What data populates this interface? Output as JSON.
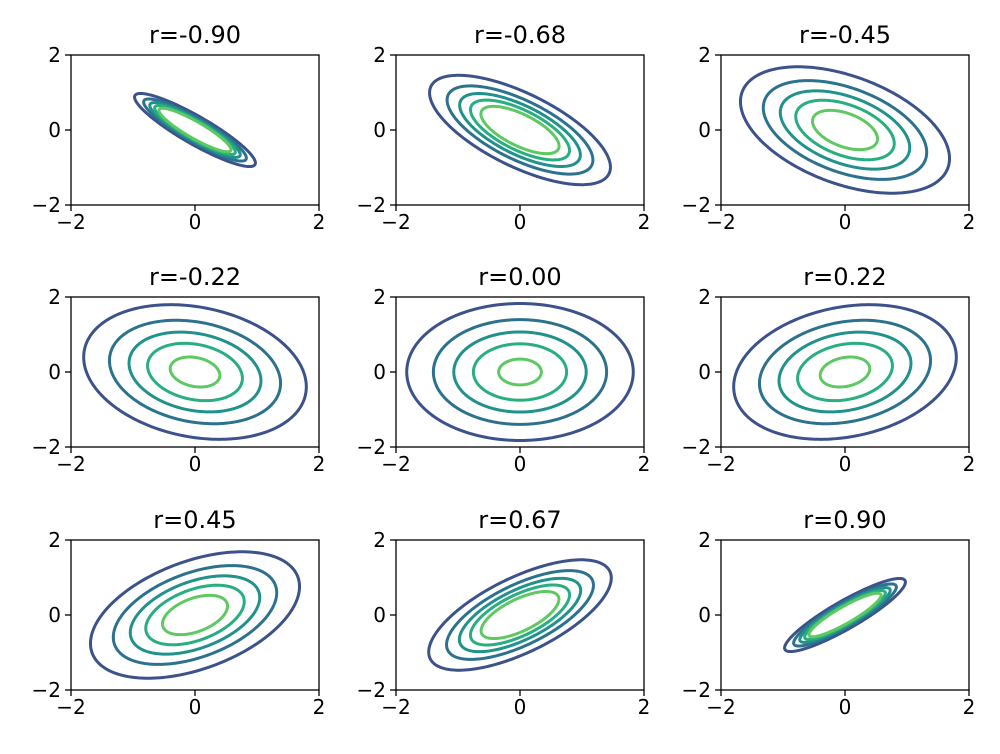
{
  "chart_data": [
    {
      "type": "contour",
      "title": "r=-0.90",
      "r": -0.9,
      "xlim": [
        -2,
        2
      ],
      "ylim": [
        -2,
        2
      ],
      "xticks": [
        -2,
        0,
        2
      ],
      "yticks": [
        -2,
        0,
        2
      ],
      "xtick_labels": [
        "−2",
        "0",
        "2"
      ],
      "ytick_labels": [
        "−2",
        "0",
        "2"
      ]
    },
    {
      "type": "contour",
      "title": "r=-0.68",
      "r": -0.68,
      "xlim": [
        -2,
        2
      ],
      "ylim": [
        -2,
        2
      ],
      "xticks": [
        -2,
        0,
        2
      ],
      "yticks": [
        -2,
        0,
        2
      ],
      "xtick_labels": [
        "−2",
        "0",
        "2"
      ],
      "ytick_labels": [
        "−2",
        "0",
        "2"
      ]
    },
    {
      "type": "contour",
      "title": "r=-0.45",
      "r": -0.45,
      "xlim": [
        -2,
        2
      ],
      "ylim": [
        -2,
        2
      ],
      "xticks": [
        -2,
        0,
        2
      ],
      "yticks": [
        -2,
        0,
        2
      ],
      "xtick_labels": [
        "−2",
        "0",
        "2"
      ],
      "ytick_labels": [
        "−2",
        "0",
        "2"
      ]
    },
    {
      "type": "contour",
      "title": "r=-0.22",
      "r": -0.22,
      "xlim": [
        -2,
        2
      ],
      "ylim": [
        -2,
        2
      ],
      "xticks": [
        -2,
        0,
        2
      ],
      "yticks": [
        -2,
        0,
        2
      ],
      "xtick_labels": [
        "−2",
        "0",
        "2"
      ],
      "ytick_labels": [
        "−2",
        "0",
        "2"
      ]
    },
    {
      "type": "contour",
      "title": "r=0.00",
      "r": 0.0,
      "xlim": [
        -2,
        2
      ],
      "ylim": [
        -2,
        2
      ],
      "xticks": [
        -2,
        0,
        2
      ],
      "yticks": [
        -2,
        0,
        2
      ],
      "xtick_labels": [
        "−2",
        "0",
        "2"
      ],
      "ytick_labels": [
        "−2",
        "0",
        "2"
      ]
    },
    {
      "type": "contour",
      "title": "r=0.22",
      "r": 0.22,
      "xlim": [
        -2,
        2
      ],
      "ylim": [
        -2,
        2
      ],
      "xticks": [
        -2,
        0,
        2
      ],
      "yticks": [
        -2,
        0,
        2
      ],
      "xtick_labels": [
        "−2",
        "0",
        "2"
      ],
      "ytick_labels": [
        "−2",
        "0",
        "2"
      ]
    },
    {
      "type": "contour",
      "title": "r=0.45",
      "r": 0.45,
      "xlim": [
        -2,
        2
      ],
      "ylim": [
        -2,
        2
      ],
      "xticks": [
        -2,
        0,
        2
      ],
      "yticks": [
        -2,
        0,
        2
      ],
      "xtick_labels": [
        "−2",
        "0",
        "2"
      ],
      "ytick_labels": [
        "−2",
        "0",
        "2"
      ]
    },
    {
      "type": "contour",
      "title": "r=0.67",
      "r": 0.67,
      "xlim": [
        -2,
        2
      ],
      "ylim": [
        -2,
        2
      ],
      "xticks": [
        -2,
        0,
        2
      ],
      "yticks": [
        -2,
        0,
        2
      ],
      "xtick_labels": [
        "−2",
        "0",
        "2"
      ],
      "ytick_labels": [
        "−2",
        "0",
        "2"
      ]
    },
    {
      "type": "contour",
      "title": "r=0.90",
      "r": 0.9,
      "xlim": [
        -2,
        2
      ],
      "ylim": [
        -2,
        2
      ],
      "xticks": [
        -2,
        0,
        2
      ],
      "yticks": [
        -2,
        0,
        2
      ],
      "xtick_labels": [
        "−2",
        "0",
        "2"
      ],
      "ytick_labels": [
        "−2",
        "0",
        "2"
      ]
    }
  ],
  "contour_levels": [
    0.03,
    0.06,
    0.09,
    0.12,
    0.15
  ],
  "colormap": [
    "#472d7b",
    "#3b528b",
    "#2c728e",
    "#21918c",
    "#28ae80",
    "#5ec962",
    "#addc30"
  ],
  "colors": {
    "axes": "#000000",
    "background": "#ffffff",
    "text": "#000000"
  }
}
